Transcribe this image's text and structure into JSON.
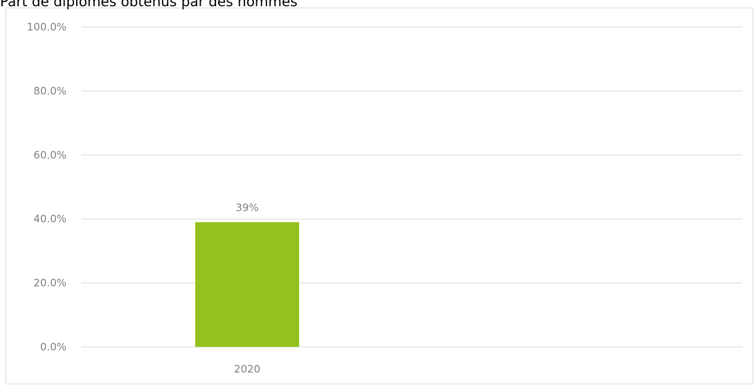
{
  "chart_data": {
    "type": "bar",
    "title": "Part de diplômes obtenus par des hommes",
    "categories": [
      "2020"
    ],
    "values": [
      0.39
    ],
    "data_labels": [
      "39%"
    ],
    "ylim": [
      0,
      1
    ],
    "yticks": [
      0,
      0.2,
      0.4,
      0.6,
      0.8,
      1.0
    ],
    "ytick_labels": [
      "0.0%",
      "20.0%",
      "40.0%",
      "60.0%",
      "80.0%",
      "100.0%"
    ],
    "xlabel": "",
    "ylabel": "",
    "grid": true,
    "legend": "none",
    "bar_color": "#95c11f",
    "gridline_color": "#d9d9d9"
  }
}
